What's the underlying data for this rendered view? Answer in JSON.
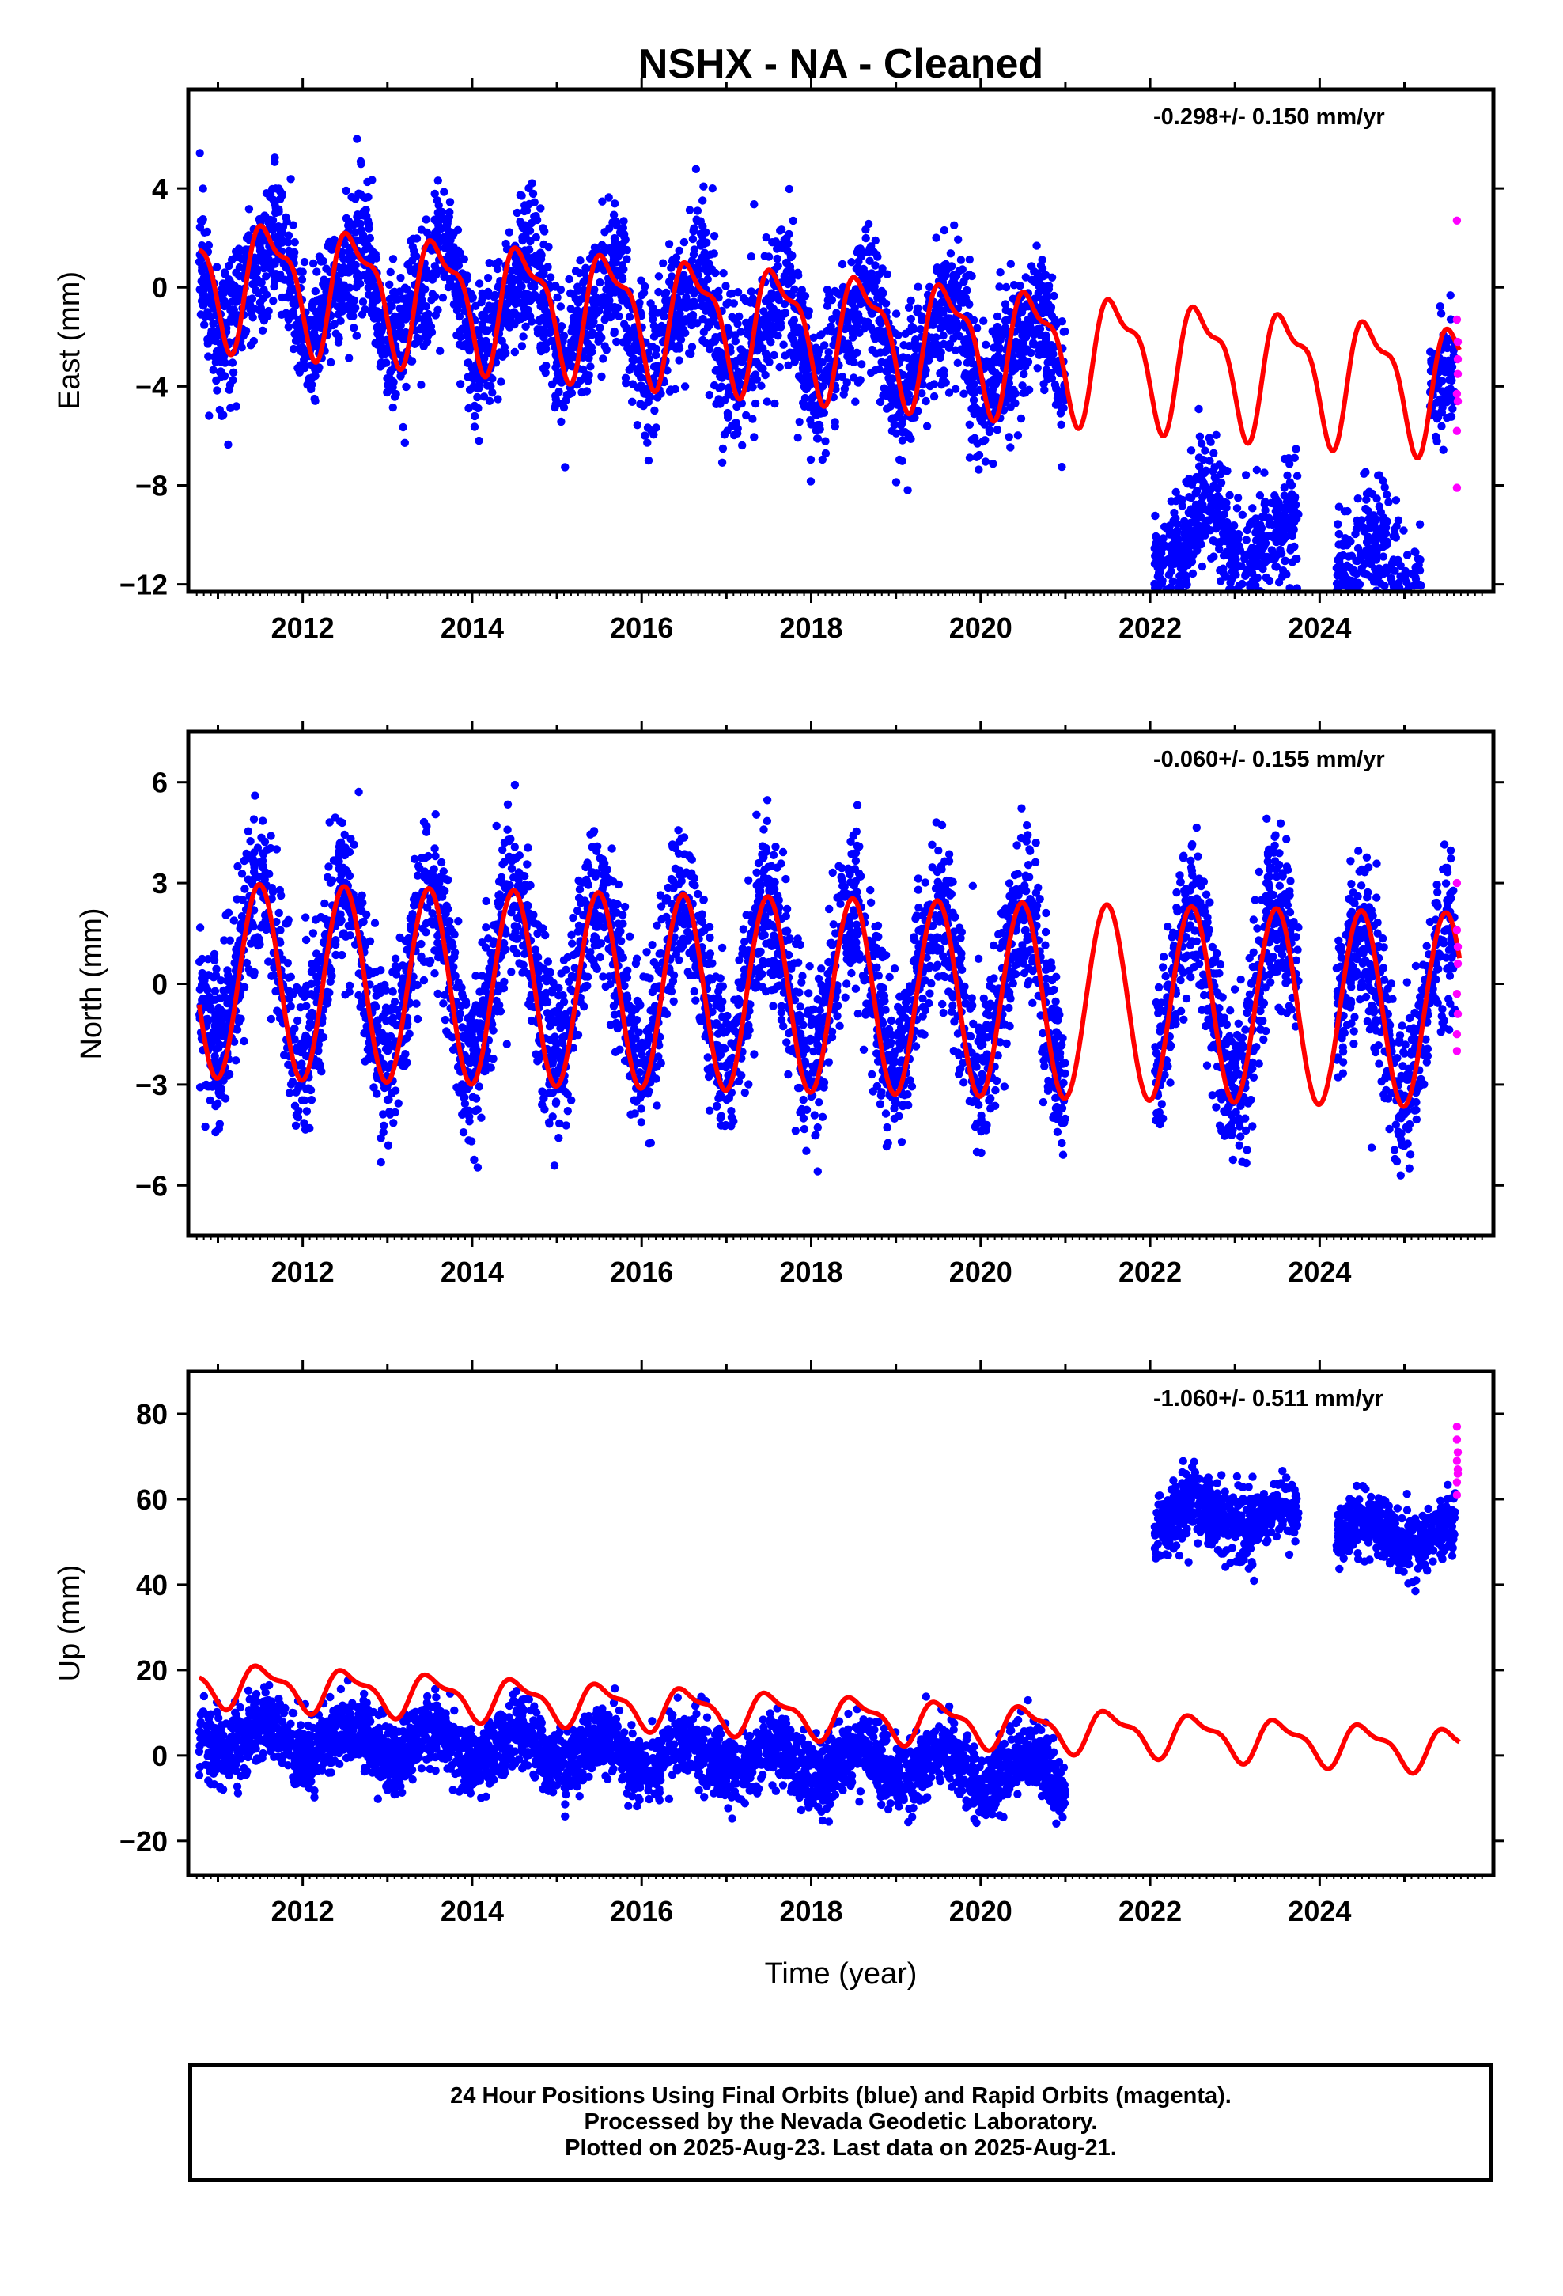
{
  "chart_data": [
    {
      "type": "scatter",
      "title": "NSHX  - NA - Cleaned",
      "ylabel": "East (mm)",
      "xlabel": "",
      "rate_annotation": "-0.298+/- 0.150 mm/yr",
      "xlim": [
        2010.65,
        2026.05
      ],
      "ylim": [
        -12.3,
        8.0
      ],
      "yticks": [
        -12,
        -8,
        -4,
        0,
        4
      ],
      "ytick_labels": [
        "−12",
        "−8",
        "−4",
        "0",
        "4"
      ],
      "xticks": [
        2012,
        2014,
        2016,
        2018,
        2020,
        2022,
        2024
      ],
      "xtick_labels": [
        "2012",
        "2014",
        "2016",
        "2018",
        "2020",
        "2022",
        "2024"
      ],
      "grid": false,
      "series": [
        {
          "name": "Final Orbits",
          "color": "#0000ff",
          "segments": [
            {
              "start": 2010.78,
              "end": 2021.0,
              "offset": 0.2,
              "trend": -0.3,
              "amp1": 1.8,
              "amp2": 0.6,
              "phase": 0.62,
              "noise": 1.4
            },
            {
              "start": 2022.05,
              "end": 2023.75,
              "offset": -6.6,
              "trend": -0.3,
              "amp1": 1.2,
              "amp2": 0.4,
              "phase": 0.62,
              "noise": 1.3
            },
            {
              "start": 2024.2,
              "end": 2025.2,
              "offset": -7.6,
              "trend": -0.3,
              "amp1": 1.2,
              "amp2": 0.4,
              "phase": 0.62,
              "noise": 1.4
            },
            {
              "start": 2025.3,
              "end": 2025.6,
              "offset": -3.8,
              "trend": 0,
              "amp1": 0.5,
              "amp2": 0,
              "phase": 0.62,
              "noise": 1.1
            }
          ]
        },
        {
          "name": "Rapid Orbits",
          "color": "#ff00ff",
          "points": [
            [
              2025.62,
              2.7
            ],
            [
              2025.62,
              -1.3
            ],
            [
              2025.63,
              -2.2
            ],
            [
              2025.63,
              -2.9
            ],
            [
              2025.62,
              -4.3
            ],
            [
              2025.63,
              -4.6
            ],
            [
              2025.62,
              -5.8
            ],
            [
              2025.62,
              -8.1
            ],
            [
              2025.63,
              -3.5
            ]
          ]
        },
        {
          "name": "Model",
          "color": "#ff0000",
          "model": {
            "start": 2010.78,
            "end": 2025.65,
            "offset": 0.5,
            "trend": -0.298,
            "amp1": 2.3,
            "phase1": 0.62,
            "amp2": 0.9,
            "phase2": 0.3
          }
        }
      ]
    },
    {
      "type": "scatter",
      "ylabel": "North (mm)",
      "xlabel": "",
      "rate_annotation": "-0.060+/- 0.155 mm/yr",
      "xlim": [
        2010.65,
        2026.05
      ],
      "ylim": [
        -7.5,
        7.5
      ],
      "yticks": [
        -6,
        -3,
        0,
        3,
        6
      ],
      "ytick_labels": [
        "−6",
        "−3",
        "0",
        "3",
        "6"
      ],
      "xticks": [
        2012,
        2014,
        2016,
        2018,
        2020,
        2022,
        2024
      ],
      "xtick_labels": [
        "2012",
        "2014",
        "2016",
        "2018",
        "2020",
        "2022",
        "2024"
      ],
      "grid": false,
      "series": [
        {
          "name": "Final Orbits",
          "color": "#0000ff",
          "segments": [
            {
              "start": 2010.78,
              "end": 2021.0,
              "offset": 0.4,
              "trend": -0.06,
              "amp1": 2.4,
              "amp2": 0,
              "phase": 0.49,
              "noise": 1.2
            },
            {
              "start": 2022.05,
              "end": 2023.75,
              "offset": 0.3,
              "trend": -0.06,
              "amp1": 2.5,
              "amp2": 0,
              "phase": 0.49,
              "noise": 1.2
            },
            {
              "start": 2024.2,
              "end": 2025.6,
              "offset": 0.0,
              "trend": -0.06,
              "amp1": 2.4,
              "amp2": 0,
              "phase": 0.49,
              "noise": 1.2
            }
          ]
        },
        {
          "name": "Rapid Orbits",
          "color": "#ff00ff",
          "points": [
            [
              2025.62,
              3.0
            ],
            [
              2025.62,
              1.6
            ],
            [
              2025.63,
              0.6
            ],
            [
              2025.62,
              -0.3
            ],
            [
              2025.63,
              -0.9
            ],
            [
              2025.62,
              -1.5
            ],
            [
              2025.62,
              -2.0
            ],
            [
              2025.63,
              1.1
            ]
          ]
        },
        {
          "name": "Model",
          "color": "#ff0000",
          "model": {
            "start": 2010.78,
            "end": 2025.65,
            "offset": 0.1,
            "trend": -0.06,
            "amp1": 2.9,
            "phase1": 0.49,
            "amp2": 0.0,
            "phase2": 0.0
          }
        }
      ]
    },
    {
      "type": "scatter",
      "ylabel": "Up (mm)",
      "xlabel": "Time (year)",
      "rate_annotation": "-1.060+/- 0.511 mm/yr",
      "xlim": [
        2010.65,
        2026.05
      ],
      "ylim": [
        -28,
        90
      ],
      "yticks": [
        -20,
        0,
        20,
        40,
        60,
        80
      ],
      "ytick_labels": [
        "−20",
        "0",
        "20",
        "40",
        "60",
        "80"
      ],
      "xticks": [
        2012,
        2014,
        2016,
        2018,
        2020,
        2022,
        2024
      ],
      "xtick_labels": [
        "2012",
        "2014",
        "2016",
        "2018",
        "2020",
        "2022",
        "2024"
      ],
      "grid": false,
      "series": [
        {
          "name": "Final Orbits",
          "color": "#0000ff",
          "segments": [
            {
              "start": 2010.78,
              "end": 2021.0,
              "offset": 5.0,
              "trend": -0.9,
              "amp1": 3.5,
              "amp2": 0,
              "phase": 0.55,
              "noise": 4.0
            },
            {
              "start": 2022.05,
              "end": 2023.75,
              "offset": 68.0,
              "trend": -1.0,
              "amp1": 3.0,
              "amp2": 0,
              "phase": 0.55,
              "noise": 4.0
            },
            {
              "start": 2024.2,
              "end": 2025.6,
              "offset": 66.0,
              "trend": -1.0,
              "amp1": 3.0,
              "amp2": 0,
              "phase": 0.55,
              "noise": 3.5
            }
          ]
        },
        {
          "name": "Rapid Orbits",
          "color": "#ff00ff",
          "points": [
            [
              2025.62,
              77
            ],
            [
              2025.62,
              74
            ],
            [
              2025.63,
              71
            ],
            [
              2025.62,
              69
            ],
            [
              2025.63,
              66
            ],
            [
              2025.62,
              64
            ],
            [
              2025.62,
              61
            ],
            [
              2025.63,
              67
            ]
          ]
        },
        {
          "name": "Model",
          "color": "#ff0000",
          "model": {
            "start": 2010.78,
            "end": 2025.65,
            "offset": 17.0,
            "trend": -1.06,
            "amp1": 4.5,
            "phase1": 0.55,
            "amp2": 1.8,
            "phase2": 0.25
          }
        }
      ]
    }
  ],
  "footer": {
    "line1": "24 Hour Positions Using Final Orbits (blue) and Rapid Orbits (magenta).",
    "line2": "Processed by the Nevada Geodetic Laboratory.",
    "line3": "Plotted on 2025-Aug-23. Last data on 2025-Aug-21."
  }
}
